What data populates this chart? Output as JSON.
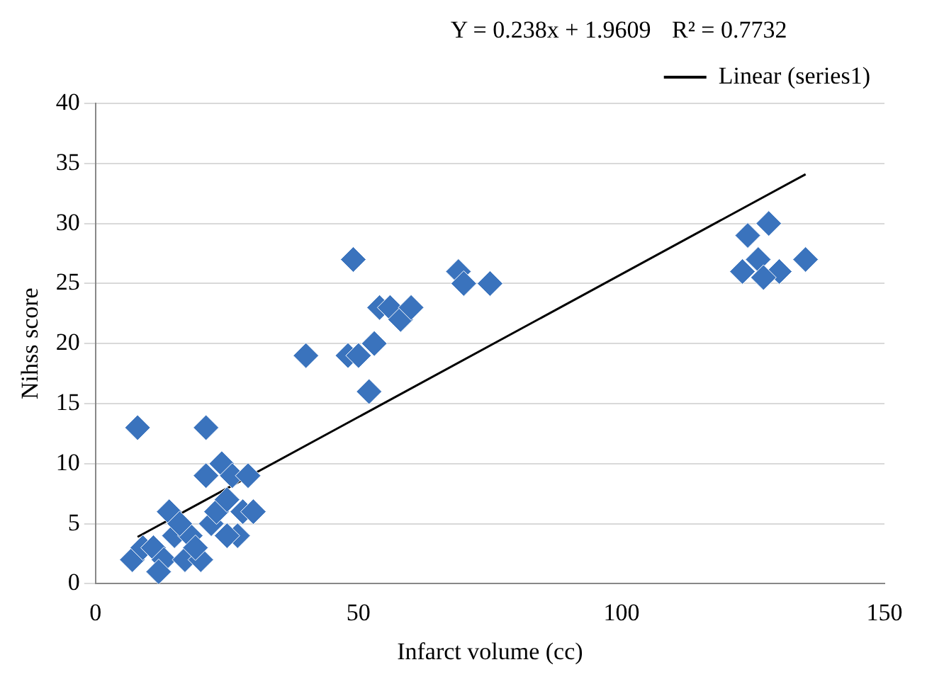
{
  "chart_data": {
    "type": "scatter",
    "xlabel": "Infarct volume (cc)",
    "ylabel": "Nihss score",
    "annotations": [
      "Y = 0.238x + 1.9609",
      "R² = 0.7732"
    ],
    "xlim": [
      0,
      150
    ],
    "xticks": [
      0,
      50,
      100,
      150
    ],
    "ylim": [
      0,
      40
    ],
    "yticks": [
      0,
      5,
      10,
      15,
      20,
      25,
      30,
      35,
      40
    ],
    "grid": "y",
    "legend": "top right",
    "marker": "diamond",
    "series": [
      {
        "type": "scatter",
        "color": "#3a73bd",
        "x": [
          8,
          21,
          49,
          40,
          48,
          50,
          52,
          53,
          54,
          56,
          58,
          60,
          69,
          70,
          75,
          124,
          123,
          126,
          128,
          130,
          135,
          127,
          7,
          9,
          11,
          13,
          14,
          15,
          17,
          18,
          20,
          21,
          22,
          23,
          24,
          25,
          26,
          27,
          28,
          29,
          30,
          19,
          16,
          25,
          12
        ],
        "values": [
          13,
          13,
          27,
          19,
          19,
          19,
          16,
          20,
          23,
          23,
          22,
          23,
          26,
          25,
          25,
          29,
          26,
          27,
          30,
          26,
          27,
          25.5,
          2,
          3,
          3,
          2,
          6,
          4,
          2,
          4,
          2,
          9,
          5,
          6,
          10,
          7,
          9,
          4,
          6,
          9,
          6,
          3,
          5,
          4,
          1
        ]
      },
      {
        "type": "line",
        "name": "Linear (series1)",
        "color": "#000000",
        "marker": "none",
        "x": [
          8,
          135
        ],
        "values": [
          3.9,
          34.1
        ]
      }
    ]
  }
}
